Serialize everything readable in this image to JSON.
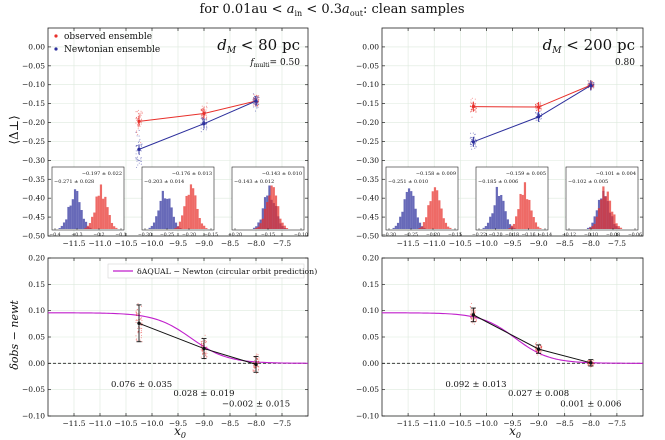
{
  "figure_title": "for 0.01au < a_in < 0.3a_out: clean samples",
  "title_parts": {
    "pre": "for 0.01au < ",
    "a": "a",
    "in": "in",
    "mid": " < 0.3",
    "out": "out",
    "post": ": clean samples"
  },
  "top_ylabel": "⟨Δ⊥⟩",
  "bottom_ylabel": "δobs − newt",
  "xlabel": "x0",
  "legend_top": {
    "observed": "observed ensemble",
    "newtonian": "Newtonian ensemble"
  },
  "legend_bottom": {
    "aqual": "δAQUAL − Newton (circular orbit prediction)"
  },
  "colors": {
    "observed": "#e8302b",
    "newtonian": "#2c2f9c",
    "aqual": "#c01fcc",
    "black": "#111111"
  },
  "chart_data": [
    {
      "type": "line",
      "panel": "top-left",
      "title": "dM < 80 pc",
      "title_parts": {
        "d": "d",
        "M": "M",
        "rest": " < 80 pc"
      },
      "fmulti": {
        "label": "f",
        "sub": "multi",
        "value": "= 0.50"
      },
      "xlim": [
        -12.0,
        -7.0
      ],
      "ylim": [
        -0.5,
        0.05
      ],
      "xticks": [
        -11.5,
        -11.0,
        -10.5,
        -10.0,
        -9.5,
        -9.0,
        -8.5,
        -8.0,
        -7.5
      ],
      "yticks": [
        0.0,
        -0.05,
        -0.1,
        -0.15,
        -0.2,
        -0.25,
        -0.3,
        -0.35,
        -0.4,
        -0.45,
        -0.5
      ],
      "grid": true,
      "series": [
        {
          "name": "observed ensemble",
          "x": [
            -10.25,
            -9.0,
            -8.0
          ],
          "y": [
            -0.197,
            -0.176,
            -0.143
          ]
        },
        {
          "name": "Newtonian ensemble",
          "x": [
            -10.25,
            -9.0,
            -8.0
          ],
          "y": [
            -0.271,
            -0.203,
            -0.143
          ]
        }
      ],
      "insets": [
        {
          "xticks": [
            "−0.4",
            "−0.3",
            "−0.2",
            "−0.1"
          ],
          "obs_label": "−0.197 ± 0.022",
          "newt_label": "−0.271 ± 0.028"
        },
        {
          "xticks": [
            "−0.30",
            "−0.25",
            "−0.20",
            "−0.15"
          ],
          "obs_label": "−0.176 ± 0.013",
          "newt_label": "−0.203 ± 0.014"
        },
        {
          "xticks": [
            "−0.20",
            "−0.15",
            "−0.10"
          ],
          "obs_label": "−0.143 ± 0.010",
          "newt_label": "−0.143 ± 0.012"
        }
      ]
    },
    {
      "type": "line",
      "panel": "top-right",
      "title": "dM < 200 pc",
      "title_parts": {
        "d": "d",
        "M": "M",
        "rest": " < 200 pc"
      },
      "fmulti": {
        "label": "",
        "sub": "",
        "value": "0.80"
      },
      "xlim": [
        -12.0,
        -7.0
      ],
      "ylim": [
        -0.5,
        0.05
      ],
      "xticks": [
        -11.5,
        -11.0,
        -10.5,
        -10.0,
        -9.5,
        -9.0,
        -8.5,
        -8.0,
        -7.5
      ],
      "yticks": [
        0.0,
        -0.05,
        -0.1,
        -0.15,
        -0.2,
        -0.25,
        -0.3,
        -0.35,
        -0.4,
        -0.45,
        -0.5
      ],
      "grid": true,
      "series": [
        {
          "name": "observed ensemble",
          "x": [
            -10.25,
            -9.0,
            -8.0
          ],
          "y": [
            -0.158,
            -0.159,
            -0.101
          ]
        },
        {
          "name": "Newtonian ensemble",
          "x": [
            -10.25,
            -9.0,
            -8.0
          ],
          "y": [
            -0.251,
            -0.185,
            -0.102
          ]
        }
      ],
      "insets": [
        {
          "xticks": [
            "−0.30",
            "−0.25",
            "−0.20",
            "−0.15"
          ],
          "obs_label": "−0.158 ± 0.009",
          "newt_label": "−0.251 ± 0.010"
        },
        {
          "xticks": [
            "−0.22",
            "−0.20",
            "−0.18",
            "−0.16",
            "−0.14"
          ],
          "obs_label": "−0.159 ± 0.005",
          "newt_label": "−0.185 ± 0.006"
        },
        {
          "xticks": [
            "−0.12",
            "−0.10",
            "−0.08",
            "−0.06"
          ],
          "obs_label": "−0.101 ± 0.004",
          "newt_label": "−0.102 ± 0.005"
        }
      ]
    },
    {
      "type": "line",
      "panel": "bottom-left",
      "xlim": [
        -12.0,
        -7.0
      ],
      "ylim": [
        -0.1,
        0.2
      ],
      "xticks": [
        -11.5,
        -11.0,
        -10.5,
        -10.0,
        -9.5,
        -9.0,
        -8.5,
        -8.0,
        -7.5
      ],
      "yticks": [
        0.2,
        0.15,
        0.1,
        0.05,
        0.0,
        -0.05,
        -0.1
      ],
      "grid": true,
      "points": [
        {
          "x": -10.25,
          "y": 0.076,
          "err": 0.035,
          "label": "0.076 ± 0.035"
        },
        {
          "x": -9.0,
          "y": 0.028,
          "err": 0.019,
          "label": "0.028 ± 0.019"
        },
        {
          "x": -8.0,
          "y": -0.002,
          "err": 0.015,
          "label": "−0.002 ± 0.015"
        }
      ],
      "prediction": {
        "name": "δAQUAL − Newton (circular orbit prediction)",
        "plateau": 0.096,
        "center": -9.25,
        "width": 0.35
      }
    },
    {
      "type": "line",
      "panel": "bottom-right",
      "xlim": [
        -12.0,
        -7.0
      ],
      "ylim": [
        -0.1,
        0.2
      ],
      "xticks": [
        -11.5,
        -11.0,
        -10.5,
        -10.0,
        -9.5,
        -9.0,
        -8.5,
        -8.0,
        -7.5
      ],
      "yticks": [
        0.2,
        0.15,
        0.1,
        0.05,
        0.0,
        -0.05,
        -0.1
      ],
      "grid": true,
      "points": [
        {
          "x": -10.25,
          "y": 0.092,
          "err": 0.013,
          "label": "0.092 ± 0.013"
        },
        {
          "x": -9.0,
          "y": 0.027,
          "err": 0.008,
          "label": "0.027 ± 0.008"
        },
        {
          "x": -8.0,
          "y": 0.001,
          "err": 0.006,
          "label": "0.001 ± 0.006"
        }
      ],
      "prediction": {
        "name": "δAQUAL − Newton (circular orbit prediction)",
        "plateau": 0.096,
        "center": -9.45,
        "width": 0.33
      }
    }
  ]
}
